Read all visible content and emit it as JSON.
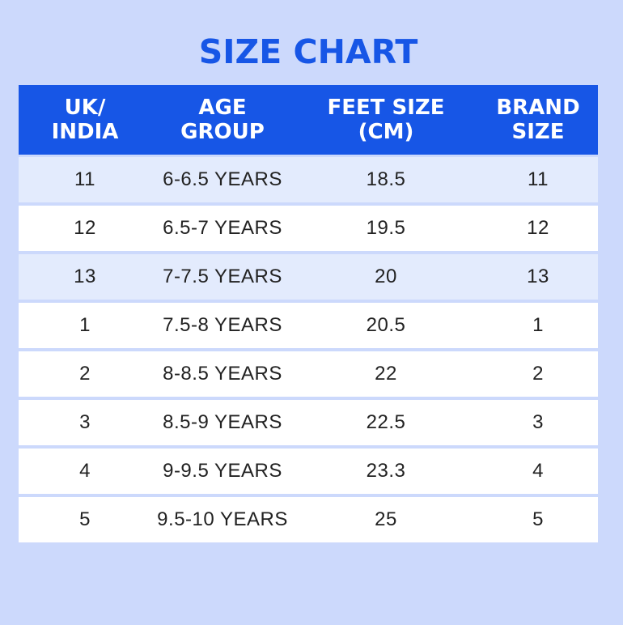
{
  "title": "SIZE CHART",
  "colors": {
    "background": "#ccd9fc",
    "accent": "#1756e6",
    "row_alt": "#e3ebfd",
    "row": "#ffffff"
  },
  "table": {
    "headers": [
      "UK/\nINDIA",
      "AGE\nGROUP",
      "FEET SIZE\n(CM)",
      "BRAND\nSIZE"
    ],
    "rows": [
      [
        "11",
        "6-6.5 YEARS",
        "18.5",
        "11"
      ],
      [
        "12",
        "6.5-7 YEARS",
        "19.5",
        "12"
      ],
      [
        "13",
        "7-7.5 YEARS",
        "20",
        "13"
      ],
      [
        "1",
        "7.5-8 YEARS",
        "20.5",
        "1"
      ],
      [
        "2",
        "8-8.5 YEARS",
        "22",
        "2"
      ],
      [
        "3",
        "8.5-9 YEARS",
        "22.5",
        "3"
      ],
      [
        "4",
        "9-9.5 YEARS",
        "23.3",
        "4"
      ],
      [
        "5",
        "9.5-10 YEARS",
        "25",
        "5"
      ]
    ]
  }
}
